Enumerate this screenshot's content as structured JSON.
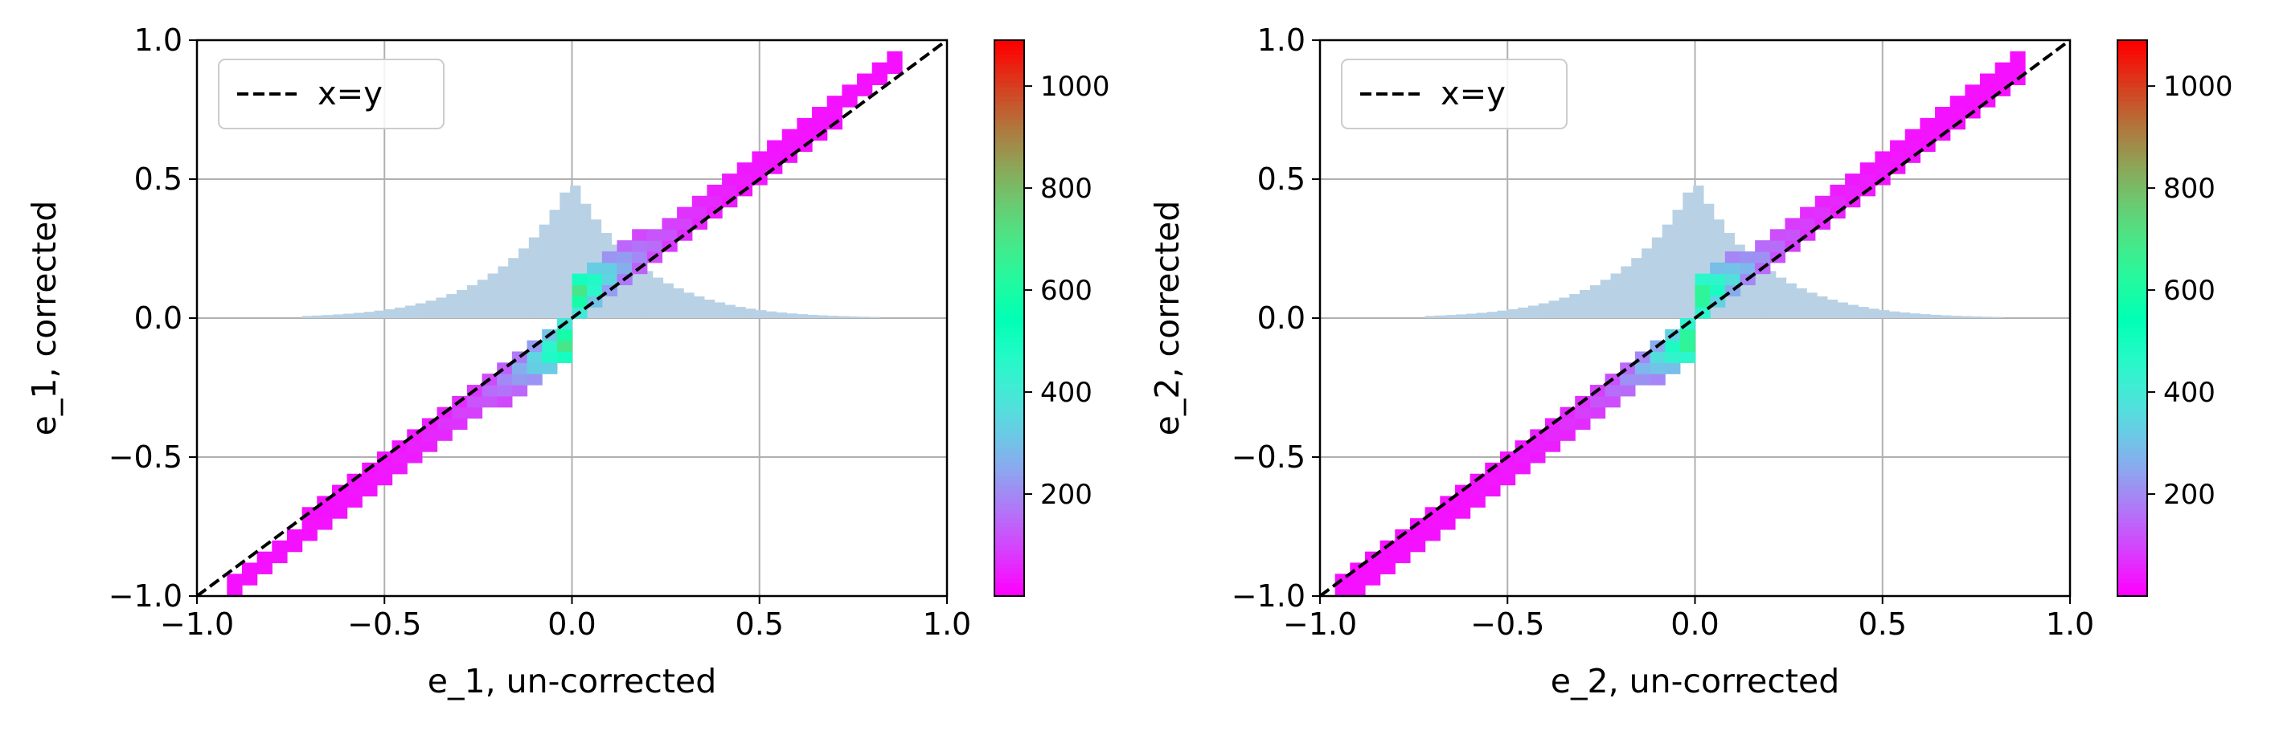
{
  "chart_data": [
    {
      "type": "heatmap",
      "xlabel": "e_1, un-corrected",
      "ylabel": "e_1, corrected",
      "xlim": [
        -1.0,
        1.0
      ],
      "ylim": [
        -1.0,
        1.0
      ],
      "xticks": [
        "−1.0",
        "−0.5",
        "0.0",
        "0.5",
        "1.0"
      ],
      "yticks": [
        "−1.0",
        "−0.5",
        "0.0",
        "0.5",
        "1.0"
      ],
      "grid": true,
      "legend": {
        "position": "top-left",
        "entries": [
          "x=y"
        ]
      },
      "reference_line": {
        "label": "x=y",
        "style": "dashed",
        "color": "#000000"
      },
      "colorbar": {
        "min": 0,
        "max": 1090,
        "ticks": [
          "200",
          "400",
          "600",
          "800",
          "1000"
        ],
        "colormap": "rainbow"
      },
      "band": {
        "x_extent": [
          -0.9,
          0.9
        ],
        "gain": 1.07,
        "bulge": 0.15
      },
      "underlying_histogram": {
        "color": "#b9d1e4",
        "peak_y": 0.46,
        "description_free": true
      }
    },
    {
      "type": "heatmap",
      "xlabel": "e_2, un-corrected",
      "ylabel": "e_2, corrected",
      "xlim": [
        -1.0,
        1.0
      ],
      "ylim": [
        -1.0,
        1.0
      ],
      "xticks": [
        "−1.0",
        "−0.5",
        "0.0",
        "0.5",
        "1.0"
      ],
      "yticks": [
        "−1.0",
        "−0.5",
        "0.0",
        "0.5",
        "1.0"
      ],
      "grid": true,
      "legend": {
        "position": "top-left",
        "entries": [
          "x=y"
        ]
      },
      "reference_line": {
        "label": "x=y",
        "style": "dashed",
        "color": "#000000"
      },
      "colorbar": {
        "min": 0,
        "max": 1090,
        "ticks": [
          "200",
          "400",
          "600",
          "800",
          "1000"
        ],
        "colormap": "rainbow"
      },
      "band": {
        "x_extent": [
          -0.95,
          0.9
        ],
        "gain": 1.05,
        "bulge": 0.13
      },
      "underlying_histogram": {
        "color": "#b9d1e4",
        "peak_y": 0.46,
        "description_free": true
      }
    }
  ]
}
